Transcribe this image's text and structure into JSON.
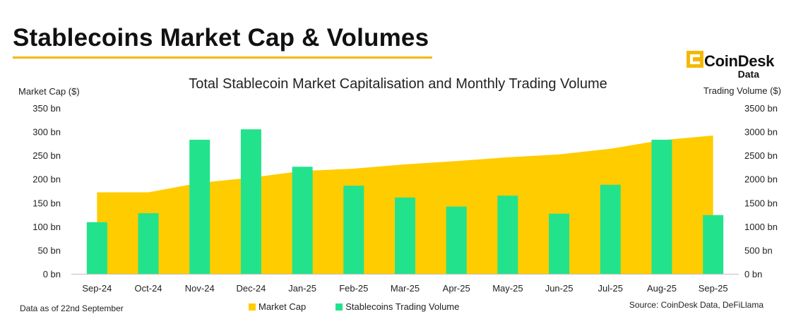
{
  "header": {
    "title": "Stablecoins Market Cap & Volumes",
    "brand_name": "CoinDesk",
    "brand_sub": "Data",
    "rule_color": "#F5B800"
  },
  "footnote": "Data as of 22nd September",
  "source": "Source: CoinDesk Data, DeFiLlama",
  "chart_data": {
    "type": "bar",
    "title": "Total Stablecoin Market Capitalisation and Monthly Trading Volume",
    "categories": [
      "Sep-24",
      "Oct-24",
      "Nov-24",
      "Dec-24",
      "Jan-25",
      "Feb-25",
      "Mar-25",
      "Apr-25",
      "May-25",
      "Jun-25",
      "Jul-25",
      "Aug-25",
      "Sep-25"
    ],
    "y_left": {
      "label": "Market Cap ($)",
      "range": [
        0,
        350
      ],
      "ticks": [
        "0 bn",
        "50 bn",
        "100 bn",
        "150 bn",
        "200 bn",
        "250 bn",
        "300 bn",
        "350 bn"
      ]
    },
    "y_right": {
      "label": "Trading Volume ($)",
      "range": [
        0,
        3500
      ],
      "ticks": [
        "0 bn",
        "500 bn",
        "1000 bn",
        "1500 bn",
        "2000 bn",
        "2500 bn",
        "3000 bn",
        "3500 bn"
      ]
    },
    "series": [
      {
        "name": "Market Cap",
        "type": "area",
        "axis": "left",
        "color": "#FFCC00",
        "values": [
          172,
          172,
          192,
          203,
          217,
          222,
          231,
          238,
          246,
          252,
          264,
          282,
          292
        ]
      },
      {
        "name": "Stablecoins Trading Volume",
        "type": "bar",
        "axis": "right",
        "color": "#22E38C",
        "values": [
          1090,
          1280,
          2830,
          3050,
          2260,
          1860,
          1610,
          1420,
          1650,
          1270,
          1880,
          2830,
          1240
        ]
      }
    ],
    "grid": false,
    "legend_position": "bottom"
  }
}
